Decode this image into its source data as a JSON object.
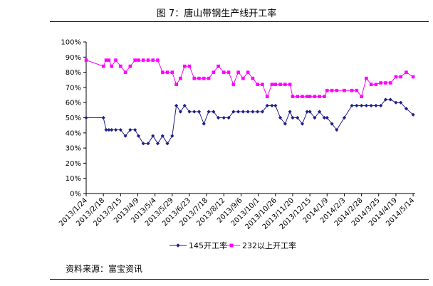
{
  "title": "图 7：唐山带钢生产线开工率",
  "source": "资料来源：富宝资讯",
  "chart_data": {
    "type": "line",
    "ylim": [
      0,
      100
    ],
    "yticks": [
      "0%",
      "10%",
      "20%",
      "30%",
      "40%",
      "50%",
      "60%",
      "70%",
      "80%",
      "90%",
      "100%"
    ],
    "grid": false,
    "legend": "bottom",
    "xlabels": [
      "2013/1/24",
      "2013/2/18",
      "2013/3/15",
      "2013/4/9",
      "2013/5/4",
      "2013/5/29",
      "2013/6/23",
      "2013/7/18",
      "2013/8/12",
      "2013/9/6",
      "2013/10/1",
      "2013/10/26",
      "2013/11/20",
      "2013/12/15",
      "2014/1/9",
      "2014/2/3",
      "2014/2/28",
      "2014/3/25",
      "2014/4/19",
      "2014/5/14"
    ],
    "x": [
      "2013/1/24",
      "2013/2/18",
      "2013/2/22",
      "2013/2/26",
      "2013/3/2",
      "2013/3/8",
      "2013/3/15",
      "2013/3/22",
      "2013/3/29",
      "2013/4/5",
      "2013/4/10",
      "2013/4/17",
      "2013/4/24",
      "2013/5/1",
      "2013/5/8",
      "2013/5/15",
      "2013/5/22",
      "2013/5/29",
      "2013/6/4",
      "2013/6/10",
      "2013/6/16",
      "2013/6/23",
      "2013/6/30",
      "2013/7/7",
      "2013/7/14",
      "2013/7/21",
      "2013/7/28",
      "2013/8/4",
      "2013/8/12",
      "2013/8/19",
      "2013/8/26",
      "2013/9/2",
      "2013/9/9",
      "2013/9/16",
      "2013/9/23",
      "2013/9/30",
      "2013/10/7",
      "2013/10/14",
      "2013/10/21",
      "2013/10/26",
      "2013/11/2",
      "2013/11/9",
      "2013/11/16",
      "2013/11/20",
      "2013/11/27",
      "2013/12/4",
      "2013/12/11",
      "2013/12/15",
      "2013/12/22",
      "2013/12/29",
      "2014/1/5",
      "2014/1/9",
      "2014/1/16",
      "2014/1/23",
      "2014/2/3",
      "2014/2/14",
      "2014/2/21",
      "2014/2/28",
      "2014/3/7",
      "2014/3/14",
      "2014/3/21",
      "2014/3/28",
      "2014/4/4",
      "2014/4/11",
      "2014/4/19",
      "2014/4/26",
      "2014/5/4",
      "2014/5/14"
    ],
    "series": [
      {
        "name": "145开工率",
        "color": "#1f1f8a",
        "marker": "diamond",
        "values": [
          50,
          50,
          42,
          42,
          42,
          42,
          42,
          38,
          42,
          42,
          38,
          33,
          33,
          38,
          33,
          38,
          33,
          38,
          58,
          54,
          58,
          54,
          54,
          54,
          46,
          54,
          54,
          50,
          50,
          50,
          54,
          54,
          54,
          54,
          54,
          54,
          54,
          58,
          58,
          58,
          50,
          46,
          54,
          50,
          50,
          46,
          54,
          54,
          50,
          54,
          50,
          50,
          46,
          42,
          50,
          58,
          58,
          58,
          58,
          58,
          58,
          58,
          62,
          62,
          60,
          60,
          56,
          52
        ]
      },
      {
        "name": "232以上开工率",
        "color": "#ff00ff",
        "marker": "square",
        "values": [
          88,
          84,
          88,
          88,
          84,
          88,
          84,
          80,
          84,
          88,
          88,
          88,
          88,
          88,
          88,
          80,
          80,
          80,
          72,
          76,
          84,
          84,
          76,
          76,
          76,
          76,
          80,
          84,
          80,
          80,
          72,
          80,
          76,
          80,
          76,
          72,
          72,
          64,
          72,
          72,
          72,
          72,
          72,
          64,
          64,
          64,
          64,
          64,
          64,
          64,
          64,
          68,
          68,
          68,
          68,
          68,
          68,
          64,
          76,
          72,
          72,
          73,
          73,
          73,
          77,
          77,
          80,
          77
        ]
      }
    ]
  }
}
